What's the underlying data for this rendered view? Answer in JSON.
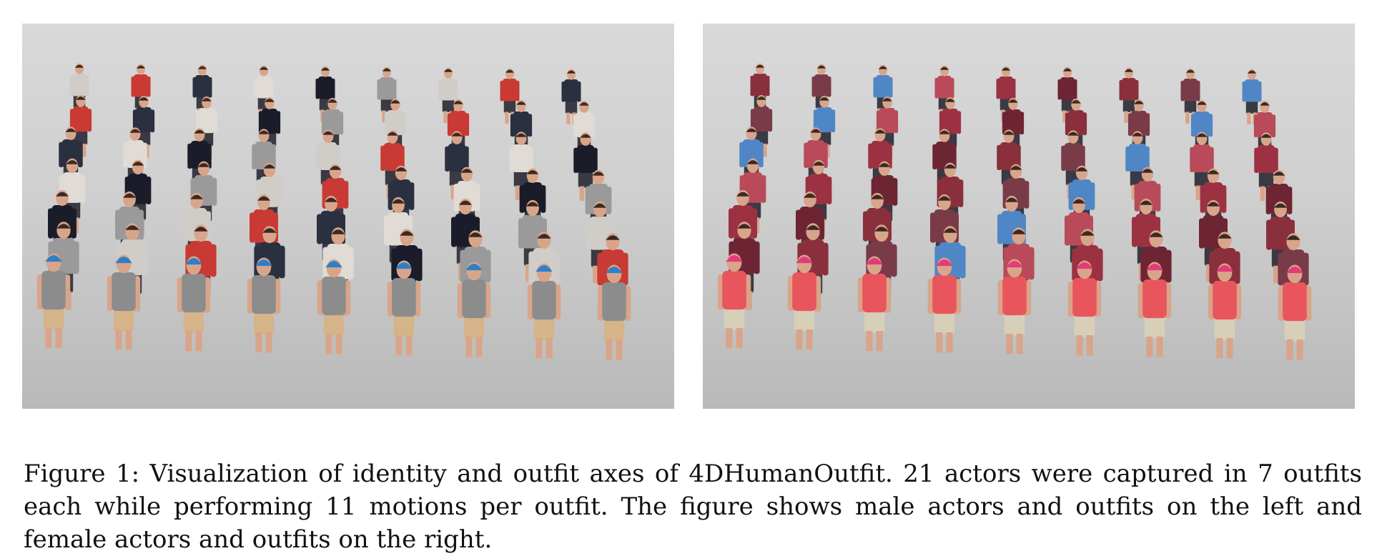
{
  "figure": {
    "caption": "Figure 1: Visualization of identity and outfit axes of 4DHumanOutfit. 21 actors were captured in 7 outfits each while performing 11 motions per outfit. The figure shows male actors and outfits on the left and female actors and outfits on the right.",
    "panels": [
      {
        "id": "male",
        "background": "#d2d2d2",
        "cap_color": "#2f7fc8",
        "front_top": "#8c8c8c",
        "front_bottom": "#d6b48a",
        "skin": "#d9a58a",
        "back_colors": [
          "#d0cdc8",
          "#c83a33",
          "#2b3040",
          "#e0dbd4",
          "#1a1d29",
          "#9a9a9a"
        ]
      },
      {
        "id": "female",
        "background": "#d2d2d2",
        "cap_color": "#e23b7a",
        "front_top": "#e8555c",
        "front_bottom": "#d8cfb8",
        "skin": "#d8a48a",
        "back_colors": [
          "#8a2f3c",
          "#7a3b48",
          "#4f86c6",
          "#b84a5a",
          "#9c3142",
          "#6e2533"
        ]
      }
    ]
  }
}
